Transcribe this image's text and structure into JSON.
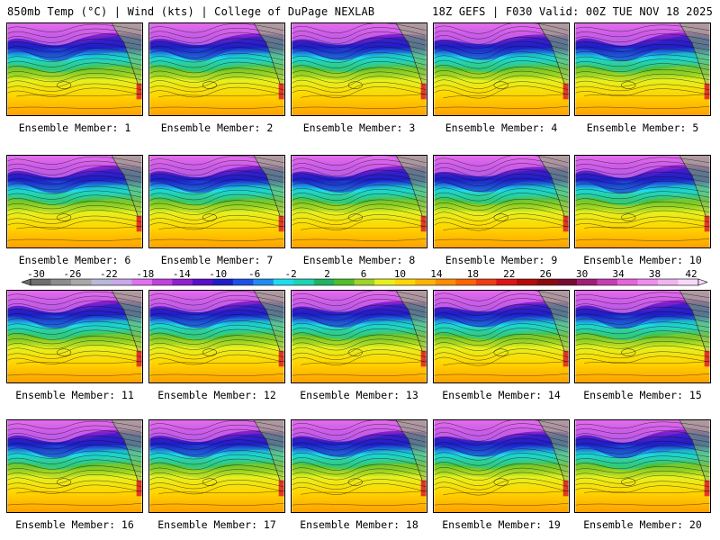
{
  "header": {
    "left_title": "850mb Temp (°C) | Wind (kts) | College of DuPage NEXLAB",
    "right_title": "18Z GEFS | F030 Valid: 00Z TUE NOV 18 2025"
  },
  "panels": [
    {
      "label": "Ensemble Member: 1"
    },
    {
      "label": "Ensemble Member: 2"
    },
    {
      "label": "Ensemble Member: 3"
    },
    {
      "label": "Ensemble Member: 4"
    },
    {
      "label": "Ensemble Member: 5"
    },
    {
      "label": "Ensemble Member: 6"
    },
    {
      "label": "Ensemble Member: 7"
    },
    {
      "label": "Ensemble Member: 8"
    },
    {
      "label": "Ensemble Member: 9"
    },
    {
      "label": "Ensemble Member: 10"
    },
    {
      "label": "Ensemble Member: 11"
    },
    {
      "label": "Ensemble Member: 12"
    },
    {
      "label": "Ensemble Member: 13"
    },
    {
      "label": "Ensemble Member: 14"
    },
    {
      "label": "Ensemble Member: 15"
    },
    {
      "label": "Ensemble Member: 16"
    },
    {
      "label": "Ensemble Member: 17"
    },
    {
      "label": "Ensemble Member: 18"
    },
    {
      "label": "Ensemble Member: 19"
    },
    {
      "label": "Ensemble Member: 20"
    }
  ],
  "colorbar": {
    "tick_labels": [
      "-30",
      "-26",
      "-22",
      "-18",
      "-14",
      "-10",
      "-6",
      "-2",
      "2",
      "6",
      "10",
      "14",
      "18",
      "22",
      "26",
      "30",
      "34",
      "38",
      "42"
    ],
    "colors": [
      "#6e6e6e",
      "#8c8c8c",
      "#a8a8a8",
      "#b8b8d8",
      "#c8a8e8",
      "#e070f0",
      "#c040e0",
      "#9020d0",
      "#5a10c8",
      "#1e1ec8",
      "#1e50e6",
      "#1e8cf0",
      "#1edcf0",
      "#1ed2b4",
      "#1eb464",
      "#50be28",
      "#a0d228",
      "#e6f01e",
      "#ffd700",
      "#ffb400",
      "#ff8c00",
      "#ff6400",
      "#f03c14",
      "#dc1414",
      "#b40a0a",
      "#8c0a0a",
      "#780a32",
      "#a01e78",
      "#c83cb4",
      "#e664dc",
      "#f08cf0",
      "#f0b4f0",
      "#f8d8f8"
    ]
  }
}
